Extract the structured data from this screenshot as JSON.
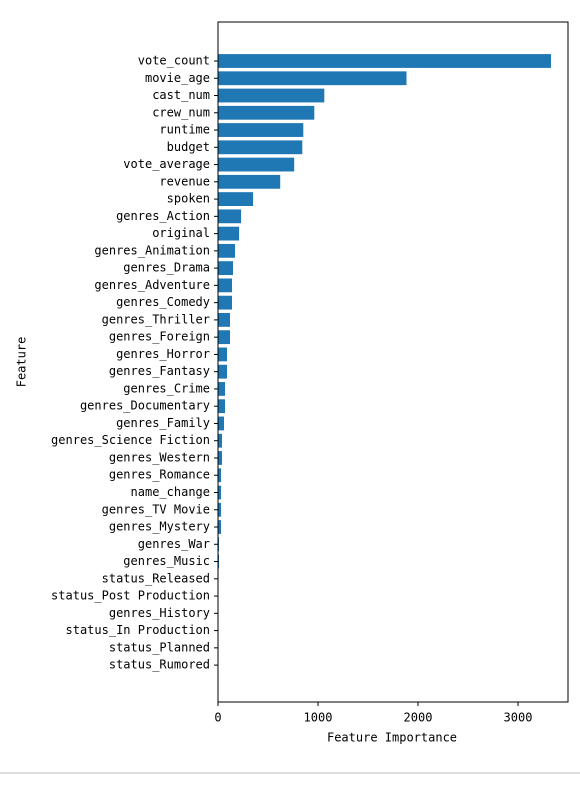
{
  "chart_data": {
    "type": "barh",
    "xlabel": "Feature Importance",
    "ylabel": "Feature",
    "color": "#1f77b4",
    "categories": [
      "vote_count",
      "movie_age",
      "cast_num",
      "crew_num",
      "runtime",
      "budget",
      "vote_average",
      "revenue",
      "spoken",
      "genres_Action",
      "original",
      "genres_Animation",
      "genres_Drama",
      "genres_Adventure",
      "genres_Comedy",
      "genres_Thriller",
      "genres_Foreign",
      "genres_Horror",
      "genres_Fantasy",
      "genres_Crime",
      "genres_Documentary",
      "genres_Family",
      "genres_Science Fiction",
      "genres_Western",
      "genres_Romance",
      "name_change",
      "genres_TV Movie",
      "genres_Mystery",
      "genres_War",
      "genres_Music",
      "status_Released",
      "status_Post Production",
      "genres_History",
      "status_In Production",
      "status_Planned",
      "status_Rumored"
    ],
    "values": [
      3330,
      1885,
      1063,
      963,
      853,
      843,
      762,
      622,
      351,
      231,
      211,
      170,
      150,
      140,
      140,
      120,
      120,
      90,
      90,
      70,
      70,
      60,
      40,
      40,
      30,
      30,
      30,
      30,
      10,
      10,
      0,
      0,
      0,
      0,
      0,
      0
    ],
    "xlim": [
      0,
      3500
    ],
    "xticks": [
      0,
      1000,
      2000,
      3000
    ]
  }
}
